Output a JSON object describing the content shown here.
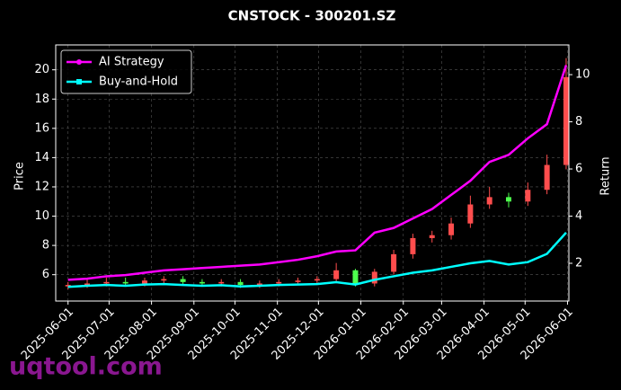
{
  "chart_data": {
    "type": "candlestick",
    "title": "CNSTOCK - 300201.SZ",
    "y_label": "Price",
    "y2_label": "Return",
    "watermark": "uqtool.com",
    "x": [
      "2025-06-01",
      "2025-06-15",
      "2025-06-29",
      "2025-07-13",
      "2025-07-27",
      "2025-08-10",
      "2025-08-24",
      "2025-09-07",
      "2025-09-21",
      "2025-10-05",
      "2025-10-19",
      "2025-11-02",
      "2025-11-16",
      "2025-11-30",
      "2025-12-14",
      "2025-12-28",
      "2026-01-11",
      "2026-01-25",
      "2026-02-08",
      "2026-02-22",
      "2026-03-08",
      "2026-03-22",
      "2026-04-05",
      "2026-04-19",
      "2026-05-03",
      "2026-05-17",
      "2026-05-31"
    ],
    "open": [
      5.2,
      5.3,
      5.4,
      5.5,
      5.4,
      5.6,
      5.7,
      5.5,
      5.4,
      5.5,
      5.3,
      5.4,
      5.5,
      5.6,
      5.7,
      6.3,
      5.4,
      6.2,
      7.4,
      8.5,
      8.7,
      9.5,
      10.8,
      11.3,
      11.0,
      11.8,
      13.5
    ],
    "high": [
      5.5,
      5.7,
      5.8,
      5.8,
      5.8,
      5.9,
      5.9,
      5.7,
      5.7,
      5.7,
      5.6,
      5.7,
      5.8,
      5.9,
      6.8,
      6.4,
      6.4,
      7.7,
      8.8,
      9.0,
      9.9,
      11.4,
      12.0,
      11.6,
      12.3,
      14.2,
      20.8
    ],
    "low": [
      5.0,
      5.1,
      5.2,
      5.2,
      5.2,
      5.4,
      5.3,
      5.2,
      5.2,
      5.1,
      5.1,
      5.2,
      5.3,
      5.4,
      5.5,
      5.2,
      5.2,
      6.0,
      7.1,
      8.2,
      8.4,
      9.2,
      10.5,
      10.6,
      10.7,
      11.5,
      13.2
    ],
    "close": [
      5.3,
      5.4,
      5.5,
      5.4,
      5.6,
      5.7,
      5.5,
      5.4,
      5.5,
      5.3,
      5.4,
      5.5,
      5.6,
      5.7,
      6.3,
      5.4,
      6.2,
      7.4,
      8.5,
      8.7,
      9.5,
      10.8,
      11.3,
      11.0,
      11.8,
      13.5,
      19.5
    ],
    "up_color": "#ff4d4d",
    "down_color": "#4dff4d",
    "series": [
      {
        "name": "AI Strategy",
        "color": "#ff00ff",
        "axis": "y2",
        "marker": "circle",
        "values": [
          1.3,
          1.35,
          1.45,
          1.5,
          1.6,
          1.7,
          1.75,
          1.8,
          1.85,
          1.9,
          1.95,
          2.05,
          2.15,
          2.3,
          2.5,
          2.55,
          3.3,
          3.5,
          3.9,
          4.3,
          4.9,
          5.5,
          6.3,
          6.6,
          7.3,
          7.9,
          10.4
        ]
      },
      {
        "name": "Buy-and-Hold",
        "color": "#00ffff",
        "axis": "y2",
        "marker": "square",
        "values": [
          1.0,
          1.05,
          1.08,
          1.05,
          1.1,
          1.12,
          1.08,
          1.05,
          1.07,
          1.02,
          1.05,
          1.08,
          1.1,
          1.12,
          1.2,
          1.1,
          1.3,
          1.45,
          1.6,
          1.7,
          1.85,
          2.0,
          2.1,
          1.95,
          2.05,
          2.4,
          3.3
        ]
      }
    ],
    "xlim": [
      "2025-05-23",
      "2026-06-02"
    ],
    "xticks": [
      "2025-06-01",
      "2025-07-01",
      "2025-08-01",
      "2025-09-01",
      "2025-10-01",
      "2025-11-01",
      "2025-12-01",
      "2026-01-01",
      "2026-02-01",
      "2026-03-01",
      "2026-04-01",
      "2026-05-01",
      "2026-06-01"
    ],
    "ylim": [
      4.2,
      21.7
    ],
    "yticks": [
      6,
      8,
      10,
      12,
      14,
      16,
      18,
      20
    ],
    "y2lim": [
      0.4,
      11.26
    ],
    "y2ticks": [
      2,
      4,
      6,
      8,
      10
    ],
    "grid": true,
    "legend": "upper-left"
  }
}
